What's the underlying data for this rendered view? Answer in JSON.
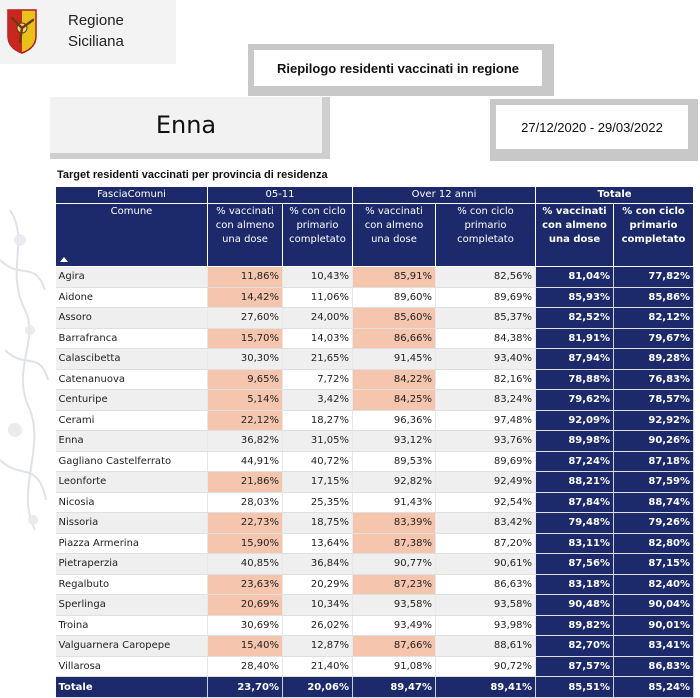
{
  "header": {
    "org_line1": "Regione",
    "org_line2": "Siciliana",
    "banner_title": "Riepilogo residenti vaccinati in regione",
    "province": "Enna",
    "date_range": "27/12/2020 - 29/03/2022"
  },
  "table": {
    "title": "Target residenti vaccinati per provincia di residenza",
    "group_headers": {
      "fascia": "FasciaComuni",
      "g1": "05-11",
      "g2": "Over 12 anni",
      "g3": "Totale"
    },
    "col_headers": {
      "comune": "Comune",
      "c1": "% vaccinati con almeno una dose",
      "c2": "% con ciclo primario completato",
      "c3": "% vaccinati con almeno una dose",
      "c4": "% con ciclo primario completato",
      "c5": "% vaccinati con almeno una dose",
      "c6": "% con ciclo primario completato"
    },
    "rows": [
      [
        "Agira",
        "11,86%",
        "10,43%",
        "85,91%",
        "82,56%",
        "81,04%",
        "77,82%"
      ],
      [
        "Aidone",
        "14,42%",
        "11,06%",
        "89,60%",
        "89,69%",
        "85,93%",
        "85,86%"
      ],
      [
        "Assoro",
        "27,60%",
        "24,00%",
        "85,60%",
        "85,37%",
        "82,52%",
        "82,12%"
      ],
      [
        "Barrafranca",
        "15,70%",
        "14,03%",
        "86,66%",
        "84,38%",
        "81,91%",
        "79,67%"
      ],
      [
        "Calascibetta",
        "30,30%",
        "21,65%",
        "91,45%",
        "93,40%",
        "87,94%",
        "89,28%"
      ],
      [
        "Catenanuova",
        "9,65%",
        "7,72%",
        "84,22%",
        "82,16%",
        "78,88%",
        "76,83%"
      ],
      [
        "Centuripe",
        "5,14%",
        "3,42%",
        "84,25%",
        "83,24%",
        "79,62%",
        "78,57%"
      ],
      [
        "Cerami",
        "22,12%",
        "18,27%",
        "96,36%",
        "97,48%",
        "92,09%",
        "92,92%"
      ],
      [
        "Enna",
        "36,82%",
        "31,05%",
        "93,12%",
        "93,76%",
        "89,98%",
        "90,26%"
      ],
      [
        "Gagliano Castelferrato",
        "44,91%",
        "40,72%",
        "89,53%",
        "89,69%",
        "87,24%",
        "87,18%"
      ],
      [
        "Leonforte",
        "21,86%",
        "17,15%",
        "92,82%",
        "92,49%",
        "88,21%",
        "87,59%"
      ],
      [
        "Nicosia",
        "28,03%",
        "25,35%",
        "91,43%",
        "92,54%",
        "87,84%",
        "88,74%"
      ],
      [
        "Nissoria",
        "22,73%",
        "18,75%",
        "83,39%",
        "83,42%",
        "79,48%",
        "79,26%"
      ],
      [
        "Piazza Armerina",
        "15,90%",
        "13,64%",
        "87,38%",
        "87,20%",
        "83,11%",
        "82,80%"
      ],
      [
        "Pietraperzia",
        "40,85%",
        "36,84%",
        "90,77%",
        "90,61%",
        "87,56%",
        "87,15%"
      ],
      [
        "Regalbuto",
        "23,63%",
        "20,29%",
        "87,23%",
        "86,63%",
        "83,18%",
        "82,40%"
      ],
      [
        "Sperlinga",
        "20,69%",
        "10,34%",
        "93,58%",
        "93,58%",
        "90,48%",
        "90,04%"
      ],
      [
        "Troina",
        "30,69%",
        "26,02%",
        "93,49%",
        "93,98%",
        "89,82%",
        "90,01%"
      ],
      [
        "Valguarnera Caropepe",
        "15,40%",
        "12,87%",
        "87,66%",
        "88,61%",
        "82,70%",
        "83,41%"
      ],
      [
        "Villarosa",
        "28,40%",
        "21,40%",
        "91,08%",
        "90,72%",
        "87,57%",
        "86,83%"
      ]
    ],
    "highlight_c1": [
      true,
      true,
      false,
      true,
      false,
      true,
      true,
      true,
      false,
      false,
      true,
      false,
      true,
      true,
      false,
      true,
      true,
      false,
      true,
      false
    ],
    "highlight_c3": [
      true,
      false,
      true,
      true,
      false,
      true,
      true,
      false,
      false,
      false,
      false,
      false,
      true,
      true,
      false,
      true,
      false,
      false,
      true,
      false
    ],
    "totals": [
      "Totale",
      "23,70%",
      "20,06%",
      "89,47%",
      "89,41%",
      "85,51%",
      "85,24%"
    ]
  },
  "colors": {
    "header_navy": "#1c2a6b",
    "highlight_salmon": "#f5c5ad"
  },
  "icons": [
    "regione-siciliana-logo",
    "sort-ascending-icon"
  ]
}
